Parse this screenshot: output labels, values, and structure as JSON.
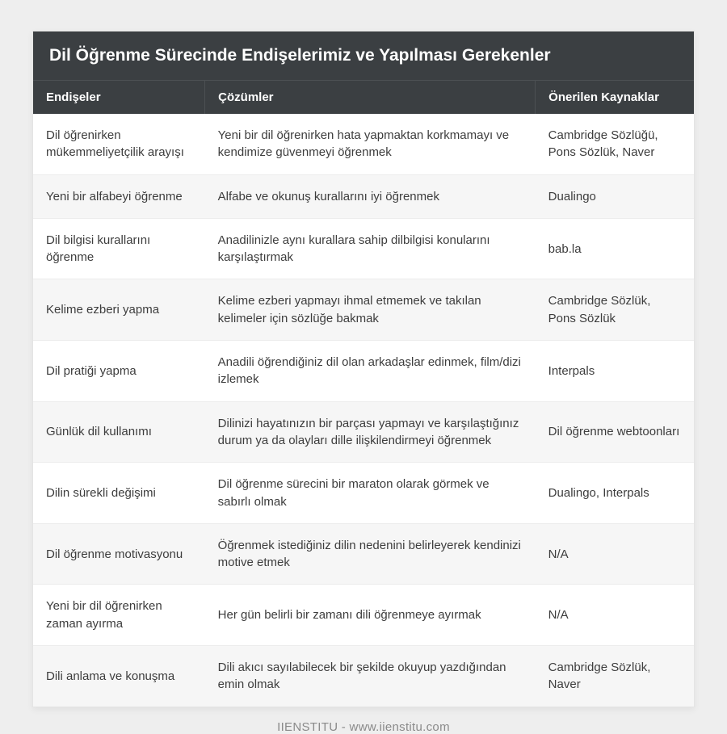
{
  "title": "Dil Öğrenme Sürecinde Endişelerimiz ve Yapılması Gerekenler",
  "columns": {
    "c0": "Endişeler",
    "c1": "Çözümler",
    "c2": "Önerilen Kaynaklar"
  },
  "rows": [
    {
      "c0": "Dil öğrenirken mükemmeliyetçilik arayışı",
      "c1": "Yeni bir dil öğrenirken hata yapmaktan korkmamayı ve kendimize güvenmeyi öğrenmek",
      "c2": "Cambridge Sözlüğü, Pons Sözlük, Naver"
    },
    {
      "c0": "Yeni bir alfabeyi öğrenme",
      "c1": "Alfabe ve okunuş kurallarını iyi öğrenmek",
      "c2": "Dualingo"
    },
    {
      "c0": "Dil bilgisi kurallarını öğrenme",
      "c1": "Anadilinizle aynı kurallara sahip dilbilgisi konularını karşılaştırmak",
      "c2": "bab.la"
    },
    {
      "c0": "Kelime ezberi yapma",
      "c1": "Kelime ezberi yapmayı ihmal etmemek ve takılan kelimeler için sözlüğe bakmak",
      "c2": "Cambridge Sözlük, Pons Sözlük"
    },
    {
      "c0": "Dil pratiği yapma",
      "c1": "Anadili öğrendiğiniz dil olan arkadaşlar edinmek, film/dizi izlemek",
      "c2": "Interpals"
    },
    {
      "c0": "Günlük dil kullanımı",
      "c1": "Dilinizi hayatınızın bir parçası yapmayı ve karşılaştığınız durum ya da olayları dille ilişkilendirmeyi öğrenmek",
      "c2": "Dil öğrenme webtoonları"
    },
    {
      "c0": "Dilin sürekli değişimi",
      "c1": "Dil öğrenme sürecini bir maraton olarak görmek ve sabırlı olmak",
      "c2": "Dualingo, Interpals"
    },
    {
      "c0": "Dil öğrenme motivasyonu",
      "c1": "Öğrenmek istediğiniz dilin nedenini belirleyerek kendinizi motive etmek",
      "c2": "N/A"
    },
    {
      "c0": "Yeni bir dil öğrenirken zaman ayırma",
      "c1": "Her gün belirli bir zamanı dili öğrenmeye ayırmak",
      "c2": "N/A"
    },
    {
      "c0": "Dili anlama ve konuşma",
      "c1": "Dili akıcı sayılabilecek bir şekilde okuyup yazdığından emin olmak",
      "c2": "Cambridge Sözlük, Naver"
    }
  ],
  "footer": "IIENSTITU - www.iienstitu.com",
  "style": {
    "type": "table",
    "title_bg": "#3b3f42",
    "title_color": "#ffffff",
    "title_fontsize": 21,
    "header_bg": "#3b3f42",
    "header_color": "#ffffff",
    "header_fontsize": 15,
    "body_fontsize": 15,
    "body_color": "#3d3d3d",
    "row_alt_bg": "#f6f6f6",
    "row_border": "#ececec",
    "page_bg": "#eeeeee",
    "card_bg": "#ffffff",
    "footer_color": "#8a8a8a",
    "col_widths_pct": [
      26,
      50,
      24
    ],
    "line_height": 1.42
  }
}
